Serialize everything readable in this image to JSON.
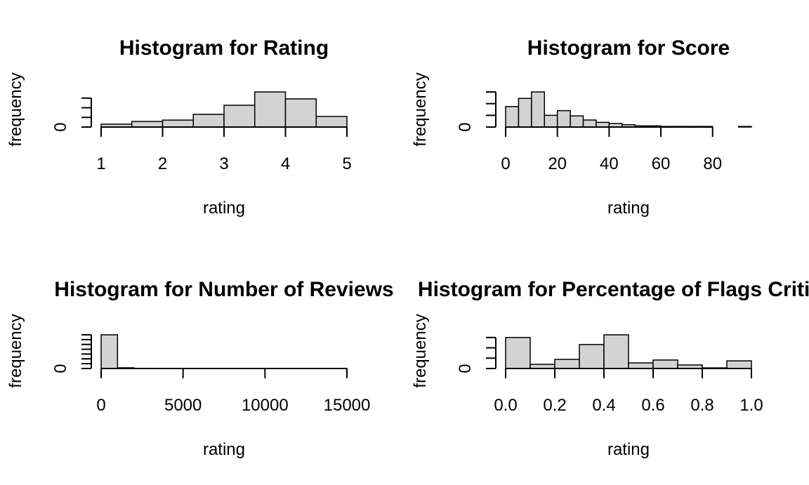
{
  "chart_data": [
    {
      "type": "histogram",
      "title": "Histogram for Rating",
      "xlabel": "rating",
      "ylabel": "frequency",
      "bins": [
        1,
        1.5,
        2,
        2.5,
        3,
        3.5,
        4,
        4.5,
        5
      ],
      "values": [
        15,
        29,
        36,
        66,
        113,
        182,
        146,
        55
      ],
      "color": "#d3d3d3",
      "xlim": [
        1,
        5
      ],
      "xticks": [
        1,
        2,
        3,
        4,
        5
      ],
      "ylim": [
        0,
        182
      ],
      "yticks": [
        0
      ],
      "yminor_ticks": [
        50,
        100,
        150
      ]
    },
    {
      "type": "histogram",
      "title": "Histogram for Score",
      "xlabel": "rating",
      "ylabel": "frequency",
      "bins": [
        0,
        5,
        10,
        15,
        20,
        25,
        30,
        35,
        40,
        45,
        50,
        55,
        60,
        65,
        70,
        75,
        80,
        85,
        90,
        95
      ],
      "values": [
        35,
        49,
        60,
        20,
        28,
        19,
        12,
        8,
        6,
        4,
        2,
        2,
        1,
        1,
        1,
        1,
        0,
        0,
        1
      ],
      "color": "#d3d3d3",
      "xlim": [
        0,
        95
      ],
      "xticks": [
        0,
        20,
        40,
        60,
        80
      ],
      "ylim": [
        0,
        60
      ],
      "yticks": [
        0
      ],
      "yminor_ticks": [
        20,
        40,
        60
      ]
    },
    {
      "type": "histogram",
      "title": "Histogram for Number of Reviews",
      "xlabel": "rating",
      "ylabel": "frequency",
      "bins": [
        0,
        1000,
        2000,
        3000,
        4000,
        5000,
        6000,
        7000,
        8000,
        9000,
        10000,
        11000,
        12000,
        13000,
        14000,
        15000
      ],
      "values": [
        700,
        15,
        4,
        2,
        1,
        1,
        0,
        0,
        0,
        0,
        0,
        0,
        0,
        0,
        1
      ],
      "color": "#d3d3d3",
      "xlim": [
        0,
        15000
      ],
      "xticks": [
        0,
        5000,
        10000,
        15000
      ],
      "ylim": [
        0,
        700
      ],
      "yticks": [
        0
      ],
      "yminor_ticks": [
        100,
        200,
        300,
        400,
        500,
        600,
        700
      ]
    },
    {
      "type": "histogram",
      "title": "Histogram for Percentage of Flags Critical",
      "xlabel": "rating",
      "ylabel": "frequency",
      "bins": [
        0,
        0.1,
        0.2,
        0.3,
        0.4,
        0.5,
        0.6,
        0.7,
        0.8,
        0.9,
        1
      ],
      "values": [
        150,
        20,
        44,
        116,
        163,
        27,
        41,
        17,
        3,
        37
      ],
      "color": "#d3d3d3",
      "xlim": [
        0,
        1
      ],
      "xticks": [
        {
          "value": 0,
          "label": "0.0"
        },
        0.2,
        0.4,
        0.6,
        0.8,
        {
          "value": 1,
          "label": "1.0"
        }
      ],
      "ylim": [
        0,
        163
      ],
      "yticks": [
        0
      ],
      "yminor_ticks": [
        50,
        100,
        150
      ]
    }
  ]
}
